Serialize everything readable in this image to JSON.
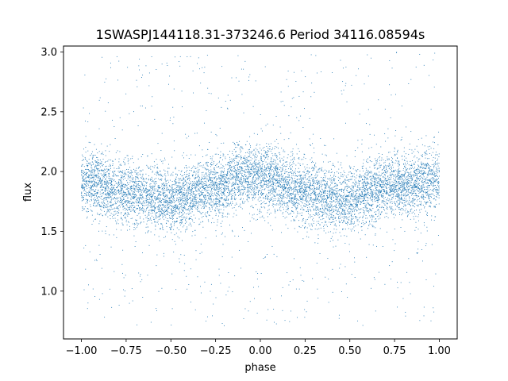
{
  "chart_data": {
    "type": "scatter",
    "title": "1SWASPJ144118.31-373246.6 Period 34116.08594s",
    "xlabel": "phase",
    "ylabel": "flux",
    "xlim": [
      -1.1,
      1.1
    ],
    "ylim": [
      0.6,
      3.05
    ],
    "x_ticks": [
      -1.0,
      -0.75,
      -0.5,
      -0.25,
      0.0,
      0.25,
      0.5,
      0.75,
      1.0
    ],
    "x_tick_labels": [
      "−1.00",
      "−0.75",
      "−0.50",
      "−0.25",
      "0.00",
      "0.25",
      "0.50",
      "0.75",
      "1.00"
    ],
    "y_ticks": [
      1.0,
      1.5,
      2.0,
      2.5,
      3.0
    ],
    "y_tick_labels": [
      "1.0",
      "1.5",
      "2.0",
      "2.5",
      "3.0"
    ],
    "grid": false,
    "legend": "none",
    "series": [
      {
        "color": "#1f77b4",
        "phase_range": [
          -1.0,
          1.0
        ],
        "flux_min": 0.7,
        "flux_max": 3.0,
        "trend": [
          {
            "phase": -1.0,
            "flux": 1.92
          },
          {
            "phase": -0.75,
            "flux": 1.82
          },
          {
            "phase": -0.5,
            "flux": 1.76
          },
          {
            "phase": -0.25,
            "flux": 1.87
          },
          {
            "phase": -0.1,
            "flux": 1.97
          },
          {
            "phase": 0.0,
            "flux": 1.95
          },
          {
            "phase": 0.25,
            "flux": 1.83
          },
          {
            "phase": 0.45,
            "flux": 1.75
          },
          {
            "phase": 0.75,
            "flux": 1.88
          },
          {
            "phase": 1.0,
            "flux": 1.93
          }
        ]
      }
    ]
  }
}
